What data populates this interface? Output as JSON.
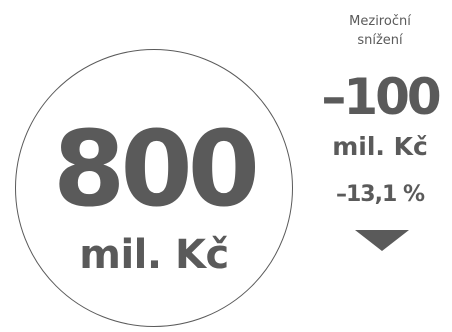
{
  "main": {
    "value": "800",
    "unit": "mil. Kč"
  },
  "change": {
    "label_line1": "Meziroční",
    "label_line2": "snížení",
    "value": "–100",
    "unit": "mil. Kč",
    "percent": "–13,1 %",
    "direction": "down",
    "direction_icon": "triangle-down-icon"
  },
  "colors": {
    "primary": "#5a5a5a",
    "background": "#ffffff"
  }
}
